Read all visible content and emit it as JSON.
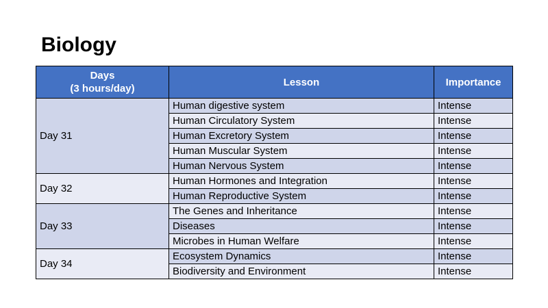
{
  "title": "Biology",
  "table": {
    "headers": {
      "days_line1": "Days",
      "days_line2": "(3 hours/day)",
      "lesson": "Lesson",
      "importance": "Importance"
    },
    "groups": [
      {
        "day": "Day 31",
        "rows": [
          {
            "lesson": "Human digestive system",
            "importance": "Intense"
          },
          {
            "lesson": "Human Circulatory System",
            "importance": "Intense"
          },
          {
            "lesson": "Human Excretory System",
            "importance": "Intense"
          },
          {
            "lesson": "Human Muscular System",
            "importance": "Intense"
          },
          {
            "lesson": "Human Nervous System",
            "importance": "Intense"
          }
        ]
      },
      {
        "day": "Day 32",
        "rows": [
          {
            "lesson": "Human Hormones and Integration",
            "importance": "Intense"
          },
          {
            "lesson": "Human Reproductive System",
            "importance": "Intense"
          }
        ]
      },
      {
        "day": "Day 33",
        "rows": [
          {
            "lesson": "The Genes and Inheritance",
            "importance": "Intense"
          },
          {
            "lesson": "Diseases",
            "importance": "Intense"
          },
          {
            "lesson": "Microbes in Human Welfare",
            "importance": "Intense"
          }
        ]
      },
      {
        "day": "Day 34",
        "rows": [
          {
            "lesson": "Ecosystem Dynamics",
            "importance": "Intense"
          },
          {
            "lesson": "Biodiversity and Environment",
            "importance": "Intense"
          }
        ]
      }
    ]
  },
  "colors": {
    "header_bg": "#4472c4",
    "row_dark": "#cfd5ea",
    "row_light": "#e9ebf5"
  }
}
